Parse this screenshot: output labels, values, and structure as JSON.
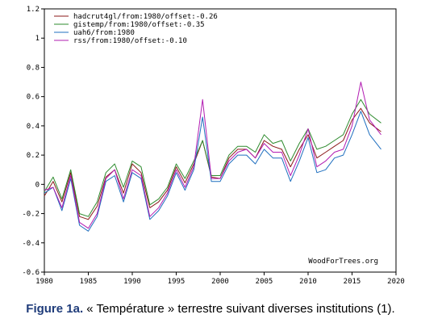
{
  "chart_data": {
    "type": "line",
    "title": "",
    "xlabel": "",
    "ylabel": "",
    "xlim": [
      1980,
      2020
    ],
    "ylim": [
      -0.6,
      1.2
    ],
    "x_ticks": [
      1980,
      1985,
      1990,
      1995,
      2000,
      2005,
      2010,
      2015,
      2020
    ],
    "y_ticks": [
      -0.6,
      -0.4,
      -0.2,
      0,
      0.2,
      0.4,
      0.6,
      0.8,
      1,
      1.2
    ],
    "x_tick_labels": [
      "1980",
      "1985",
      "1990",
      "1995",
      "2000",
      "2005",
      "2010",
      "2015",
      "2020"
    ],
    "y_tick_labels": [
      "-0.6",
      "-0.4",
      "-0.2",
      "0",
      "0.2",
      "0.4",
      "0.6",
      "0.8",
      "1",
      "1.2"
    ],
    "grid": false,
    "legend_position": "top-left",
    "watermark": "WoodForTrees.org",
    "series": [
      {
        "name": "hadcrut4gl/from:1980/offset:-0.26",
        "color": "#8b1a1a",
        "x": [
          1980,
          1981,
          1982,
          1983,
          1984,
          1985,
          1986,
          1987,
          1988,
          1989,
          1990,
          1991,
          1992,
          1993,
          1994,
          1995,
          1996,
          1997,
          1998,
          1999,
          2000,
          2001,
          2002,
          2003,
          2004,
          2005,
          2006,
          2007,
          2008,
          2009,
          2010,
          2011,
          2012,
          2013,
          2014,
          2015,
          2016,
          2017,
          2018.3
        ],
        "y": [
          -0.08,
          0.02,
          -0.12,
          0.08,
          -0.22,
          -0.24,
          -0.15,
          0.05,
          0.1,
          -0.06,
          0.14,
          0.08,
          -0.16,
          -0.12,
          -0.04,
          0.12,
          0.01,
          0.14,
          0.3,
          0.05,
          0.04,
          0.18,
          0.24,
          0.24,
          0.18,
          0.3,
          0.26,
          0.24,
          0.12,
          0.24,
          0.34,
          0.18,
          0.22,
          0.26,
          0.3,
          0.44,
          0.52,
          0.42,
          0.36
        ]
      },
      {
        "name": "gistemp/from:1980/offset:-0.35",
        "color": "#2e8b2e",
        "x": [
          1980,
          1981,
          1982,
          1983,
          1984,
          1985,
          1986,
          1987,
          1988,
          1989,
          1990,
          1991,
          1992,
          1993,
          1994,
          1995,
          1996,
          1997,
          1998,
          1999,
          2000,
          2001,
          2002,
          2003,
          2004,
          2005,
          2006,
          2007,
          2008,
          2009,
          2010,
          2011,
          2012,
          2013,
          2014,
          2015,
          2016,
          2017,
          2018.3
        ],
        "y": [
          -0.05,
          0.05,
          -0.1,
          0.1,
          -0.2,
          -0.22,
          -0.12,
          0.08,
          0.14,
          -0.02,
          0.16,
          0.12,
          -0.14,
          -0.1,
          -0.02,
          0.14,
          0.04,
          0.16,
          0.3,
          0.06,
          0.06,
          0.2,
          0.26,
          0.26,
          0.22,
          0.34,
          0.28,
          0.3,
          0.16,
          0.28,
          0.38,
          0.24,
          0.26,
          0.3,
          0.34,
          0.48,
          0.58,
          0.48,
          0.42
        ]
      },
      {
        "name": "uah6/from:1980",
        "color": "#1f6fbf",
        "x": [
          1980,
          1981,
          1982,
          1983,
          1984,
          1985,
          1986,
          1987,
          1988,
          1989,
          1990,
          1991,
          1992,
          1993,
          1994,
          1995,
          1996,
          1997,
          1998,
          1999,
          2000,
          2001,
          2002,
          2003,
          2004,
          2005,
          2006,
          2007,
          2008,
          2009,
          2010,
          2011,
          2012,
          2013,
          2014,
          2015,
          2016,
          2017,
          2018.3
        ],
        "y": [
          -0.06,
          -0.02,
          -0.18,
          0.04,
          -0.28,
          -0.32,
          -0.22,
          0.02,
          0.06,
          -0.12,
          0.08,
          0.04,
          -0.24,
          -0.18,
          -0.08,
          0.08,
          -0.04,
          0.1,
          0.46,
          0.02,
          0.02,
          0.14,
          0.2,
          0.2,
          0.14,
          0.24,
          0.18,
          0.18,
          0.02,
          0.16,
          0.32,
          0.08,
          0.1,
          0.18,
          0.2,
          0.34,
          0.5,
          0.34,
          0.24
        ]
      },
      {
        "name": "rss/from:1980/offset:-0.10",
        "color": "#b21cb2",
        "x": [
          1980,
          1981,
          1982,
          1983,
          1984,
          1985,
          1986,
          1987,
          1988,
          1989,
          1990,
          1991,
          1992,
          1993,
          1994,
          1995,
          1996,
          1997,
          1998,
          1999,
          2000,
          2001,
          2002,
          2003,
          2004,
          2005,
          2006,
          2007,
          2008,
          2009,
          2010,
          2011,
          2012,
          2013,
          2014,
          2015,
          2016,
          2017,
          2018.3
        ],
        "y": [
          -0.04,
          -0.02,
          -0.16,
          0.06,
          -0.26,
          -0.3,
          -0.2,
          0.04,
          0.1,
          -0.1,
          0.1,
          0.06,
          -0.22,
          -0.16,
          -0.06,
          0.1,
          -0.02,
          0.12,
          0.58,
          0.04,
          0.04,
          0.16,
          0.22,
          0.24,
          0.18,
          0.28,
          0.22,
          0.22,
          0.06,
          0.2,
          0.38,
          0.12,
          0.16,
          0.22,
          0.24,
          0.4,
          0.7,
          0.44,
          0.34
        ]
      }
    ]
  },
  "caption": {
    "figure_label": "Figure 1a.",
    "text": " « Température » terrestre suivant diverses institutions (1)."
  }
}
